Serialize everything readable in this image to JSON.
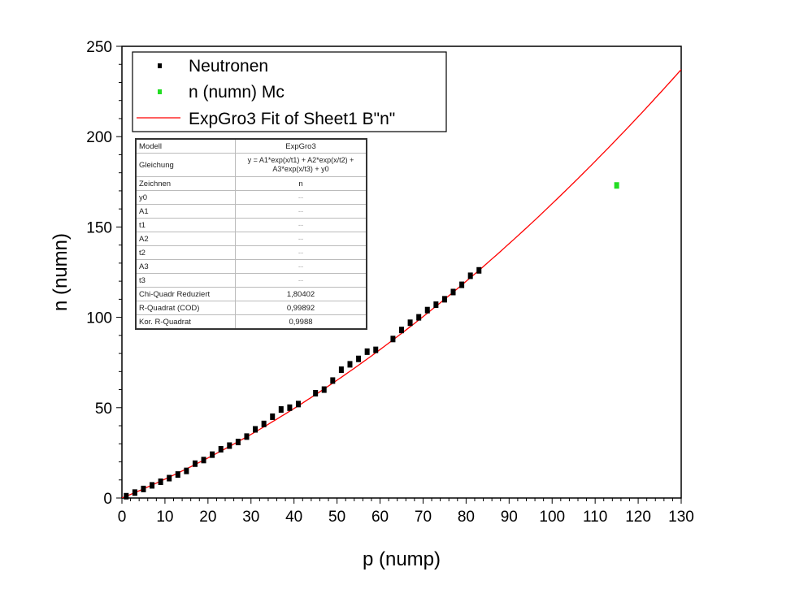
{
  "chart_data": {
    "type": "scatter",
    "xlabel": "p (nump)",
    "ylabel": "n (numn)",
    "xlim": [
      0,
      130
    ],
    "ylim": [
      0,
      250
    ],
    "xticks": [
      0,
      10,
      20,
      30,
      40,
      50,
      60,
      70,
      80,
      90,
      100,
      110,
      120,
      130
    ],
    "yticks": [
      0,
      50,
      100,
      150,
      200,
      250
    ],
    "grid": false,
    "legend_placement": "top-left",
    "series": [
      {
        "name": "Neutronen",
        "color": "#000000",
        "type": "scatter",
        "x": [
          1,
          3,
          5,
          7,
          9,
          11,
          13,
          15,
          17,
          19,
          21,
          23,
          25,
          27,
          29,
          31,
          33,
          35,
          37,
          39,
          41,
          45,
          47,
          49,
          51,
          53,
          55,
          57,
          59,
          63,
          65,
          67,
          69,
          71,
          73,
          75,
          77,
          79,
          81,
          83
        ],
        "y": [
          1,
          3,
          5,
          7,
          9,
          11,
          13,
          15,
          19,
          21,
          24,
          27,
          29,
          31,
          34,
          38,
          41,
          45,
          49,
          50,
          52,
          58,
          60,
          65,
          71,
          74,
          77,
          81,
          82,
          88,
          93,
          97,
          100,
          104,
          107,
          110,
          114,
          118,
          123,
          126
        ]
      },
      {
        "name": "n (numn) Mc",
        "color": "#22dd22",
        "type": "scatter",
        "x": [
          115
        ],
        "y": [
          173
        ]
      },
      {
        "name": "ExpGro3 Fit of Sheet1 B\"n\"",
        "color": "#ff0000",
        "type": "line",
        "x": [
          0,
          10,
          20,
          30,
          40,
          50,
          60,
          70,
          80,
          90,
          100,
          110,
          120,
          130
        ],
        "y": [
          0,
          10.4,
          22.2,
          35.2,
          49.6,
          65.2,
          82.1,
          100.4,
          130.3,
          140.8,
          163,
          186.4,
          211.3,
          237
        ]
      }
    ],
    "fit_table": {
      "rows": [
        {
          "label": "Modell",
          "value": "ExpGro3"
        },
        {
          "label": "Gleichung",
          "value": "y = A1*exp(x/t1) + A2*exp(x/t2) + A3*exp(x/t3) + y0"
        },
        {
          "label": "Zeichnen",
          "value": "n"
        },
        {
          "label": "y0",
          "value": "--"
        },
        {
          "label": "A1",
          "value": "--"
        },
        {
          "label": "t1",
          "value": "--"
        },
        {
          "label": "A2",
          "value": "--"
        },
        {
          "label": "t2",
          "value": "--"
        },
        {
          "label": "A3",
          "value": "--"
        },
        {
          "label": "t3",
          "value": "--"
        },
        {
          "label": "Chi-Quadr Reduziert",
          "value": "1,80402"
        },
        {
          "label": "R-Quadrat (COD)",
          "value": "0,99892"
        },
        {
          "label": "Kor. R-Quadrat",
          "value": "0,9988"
        }
      ]
    }
  }
}
